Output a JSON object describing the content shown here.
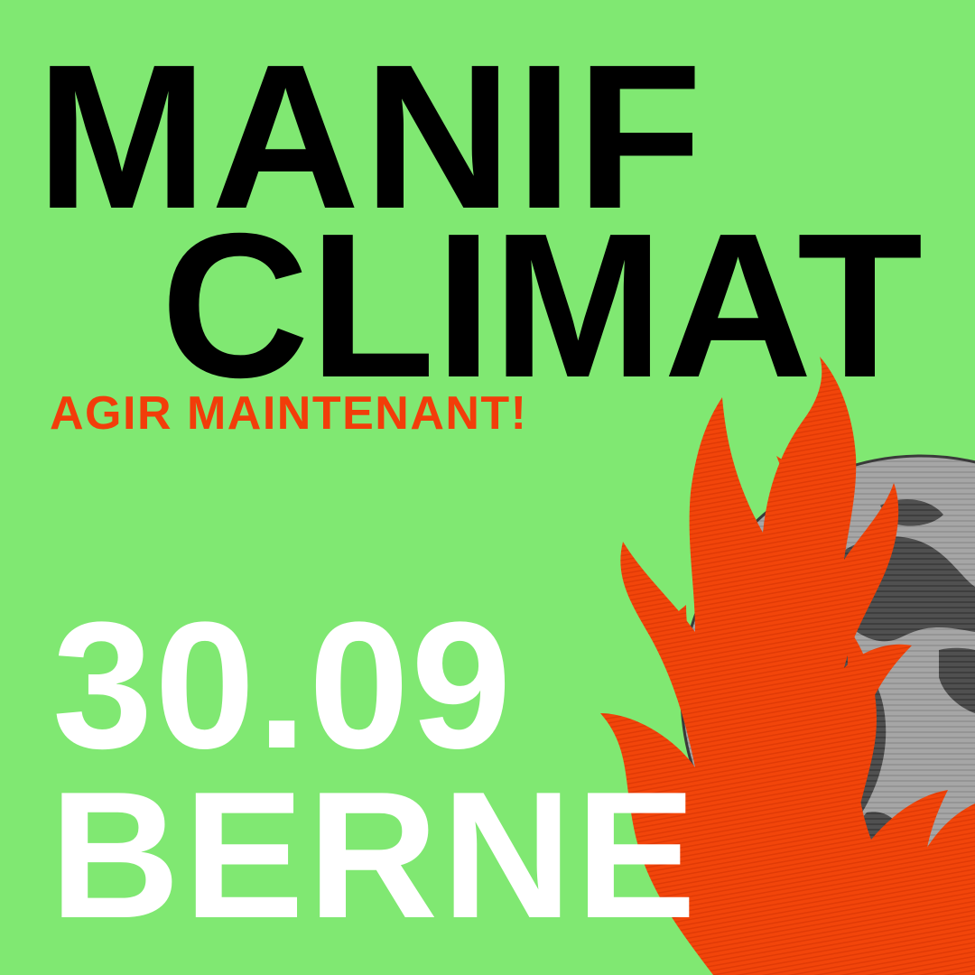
{
  "poster": {
    "headline_line1": "MANIF",
    "headline_line2": "CLIMAT",
    "tagline": "AGIR MAINTENANT!",
    "date": "30.09",
    "city": "BERNE"
  },
  "illustration": {
    "subject": "burning-globe",
    "icons": [
      "globe-icon",
      "flame-icon"
    ]
  },
  "colors": {
    "background": "#80E872",
    "headline": "#000000",
    "tagline": "#F23D0A",
    "date_city": "#FFFFFF",
    "flame": "#F2450A",
    "flame_dark": "#D93205",
    "globe_light": "#A8A8A8",
    "globe_dark": "#4A4A4A"
  }
}
